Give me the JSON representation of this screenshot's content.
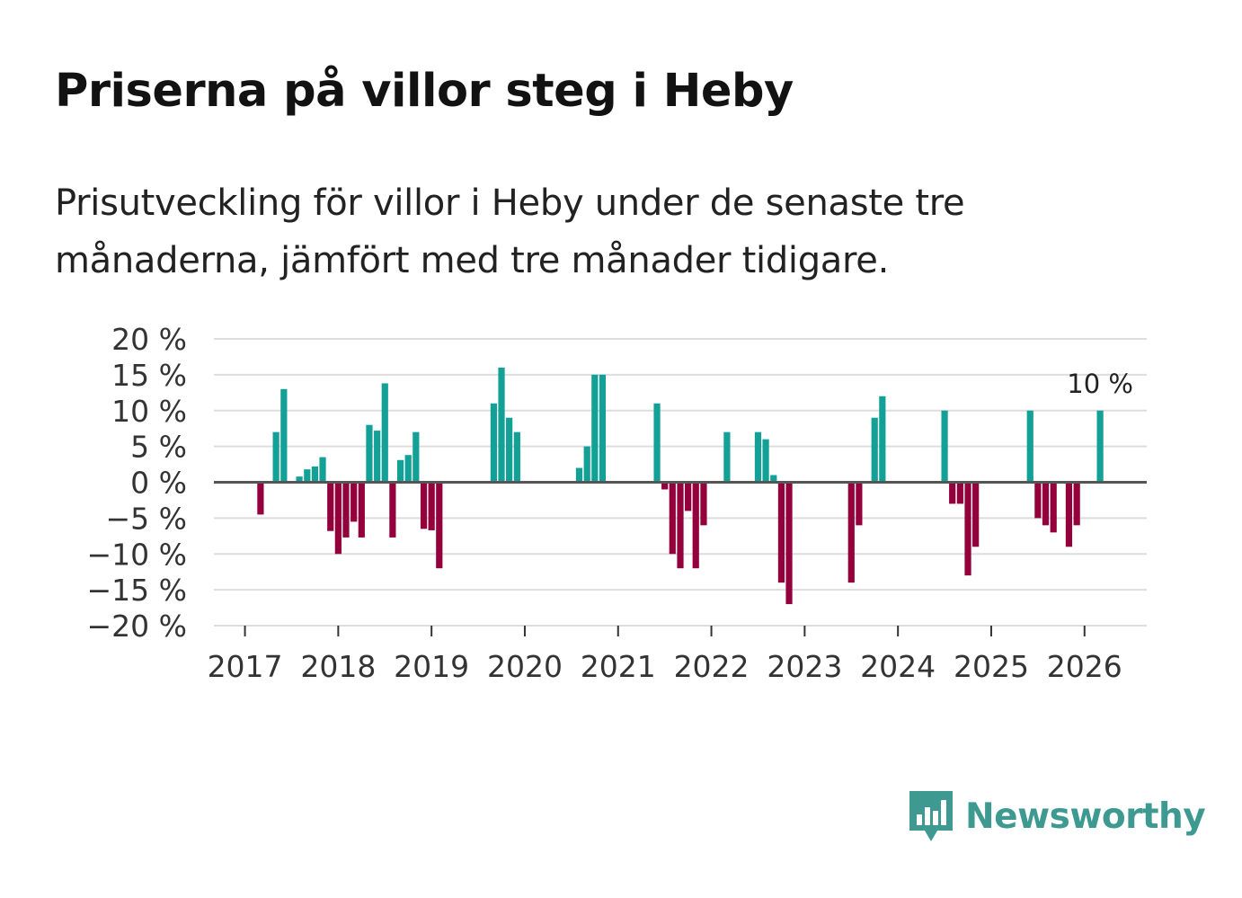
{
  "title": "Priserna på villor steg i Heby",
  "subtitle": "Prisutveckling för villor i Heby under de senaste tre månaderna, jämfört med tre månader tidigare.",
  "brand": {
    "name": "Newsworthy",
    "color": "#3e9a90",
    "icon": "newsworthy-bar-chart-icon"
  },
  "colors": {
    "positive": "#13a096",
    "negative": "#94003c",
    "grid": "#dddddd",
    "zero": "#555555"
  },
  "chart_data": {
    "type": "bar",
    "ylim": [
      -20,
      20
    ],
    "y_ticks": [
      {
        "v": 20,
        "label": "20 %"
      },
      {
        "v": 15,
        "label": "15 %"
      },
      {
        "v": 10,
        "label": "10 %"
      },
      {
        "v": 5,
        "label": "5 %"
      },
      {
        "v": 0,
        "label": "0 %"
      },
      {
        "v": -5,
        "label": "−5 %"
      },
      {
        "v": -10,
        "label": "−10 %"
      },
      {
        "v": -15,
        "label": "−15 %"
      },
      {
        "v": -20,
        "label": "−20 %"
      }
    ],
    "x_ticks": [
      {
        "x": 2017,
        "label": "2017"
      },
      {
        "x": 2018,
        "label": "2018"
      },
      {
        "x": 2019,
        "label": "2019"
      },
      {
        "x": 2020,
        "label": "2020"
      },
      {
        "x": 2021,
        "label": "2021"
      },
      {
        "x": 2022,
        "label": "2022"
      },
      {
        "x": 2023,
        "label": "2023"
      },
      {
        "x": 2024,
        "label": "2024"
      },
      {
        "x": 2025,
        "label": "2025"
      },
      {
        "x": 2026,
        "label": "2026"
      }
    ],
    "xlim": [
      2016.667,
      2026.667
    ],
    "last_value_label": "10 %",
    "series": [
      {
        "name": "Prisutveckling",
        "points": [
          {
            "x": 2017.167,
            "y": -4.5
          },
          {
            "x": 2017.333,
            "y": 7.0
          },
          {
            "x": 2017.417,
            "y": 13.0
          },
          {
            "x": 2017.583,
            "y": 0.8
          },
          {
            "x": 2017.667,
            "y": 1.8
          },
          {
            "x": 2017.75,
            "y": 2.2
          },
          {
            "x": 2017.833,
            "y": 3.5
          },
          {
            "x": 2017.917,
            "y": -6.8
          },
          {
            "x": 2018.0,
            "y": -10.0
          },
          {
            "x": 2018.083,
            "y": -7.7
          },
          {
            "x": 2018.167,
            "y": -5.5
          },
          {
            "x": 2018.25,
            "y": -7.7
          },
          {
            "x": 2018.333,
            "y": 8.0
          },
          {
            "x": 2018.417,
            "y": 7.2
          },
          {
            "x": 2018.5,
            "y": 13.8
          },
          {
            "x": 2018.583,
            "y": -7.7
          },
          {
            "x": 2018.667,
            "y": 3.1
          },
          {
            "x": 2018.75,
            "y": 3.8
          },
          {
            "x": 2018.833,
            "y": 7.0
          },
          {
            "x": 2018.917,
            "y": -6.5
          },
          {
            "x": 2019.0,
            "y": -6.7
          },
          {
            "x": 2019.083,
            "y": -12.0
          },
          {
            "x": 2019.667,
            "y": 11.0
          },
          {
            "x": 2019.75,
            "y": 16.0
          },
          {
            "x": 2019.833,
            "y": 9.0
          },
          {
            "x": 2019.917,
            "y": 7.0
          },
          {
            "x": 2020.583,
            "y": 2.0
          },
          {
            "x": 2020.667,
            "y": 5.0
          },
          {
            "x": 2020.75,
            "y": 15.0
          },
          {
            "x": 2020.833,
            "y": 15.0
          },
          {
            "x": 2021.417,
            "y": 11.0
          },
          {
            "x": 2021.5,
            "y": -1.0
          },
          {
            "x": 2021.583,
            "y": -10.0
          },
          {
            "x": 2021.667,
            "y": -12.0
          },
          {
            "x": 2021.75,
            "y": -4.0
          },
          {
            "x": 2021.833,
            "y": -12.0
          },
          {
            "x": 2021.917,
            "y": -6.0
          },
          {
            "x": 2022.167,
            "y": 7.0
          },
          {
            "x": 2022.5,
            "y": 7.0
          },
          {
            "x": 2022.583,
            "y": 6.0
          },
          {
            "x": 2022.667,
            "y": 1.0
          },
          {
            "x": 2022.75,
            "y": -14.0
          },
          {
            "x": 2022.833,
            "y": -17.0
          },
          {
            "x": 2023.5,
            "y": -14.0
          },
          {
            "x": 2023.583,
            "y": -6.0
          },
          {
            "x": 2023.75,
            "y": 9.0
          },
          {
            "x": 2023.833,
            "y": 12.0
          },
          {
            "x": 2024.5,
            "y": 10.0
          },
          {
            "x": 2024.583,
            "y": -3.0
          },
          {
            "x": 2024.667,
            "y": -3.0
          },
          {
            "x": 2024.75,
            "y": -13.0
          },
          {
            "x": 2024.833,
            "y": -9.0
          },
          {
            "x": 2025.417,
            "y": 10.0
          },
          {
            "x": 2025.5,
            "y": -5.0
          },
          {
            "x": 2025.583,
            "y": -6.0
          },
          {
            "x": 2025.667,
            "y": -7.0
          },
          {
            "x": 2025.833,
            "y": -9.0
          },
          {
            "x": 2025.917,
            "y": -6.0
          },
          {
            "x": 2026.167,
            "y": 10.0
          }
        ]
      }
    ]
  }
}
